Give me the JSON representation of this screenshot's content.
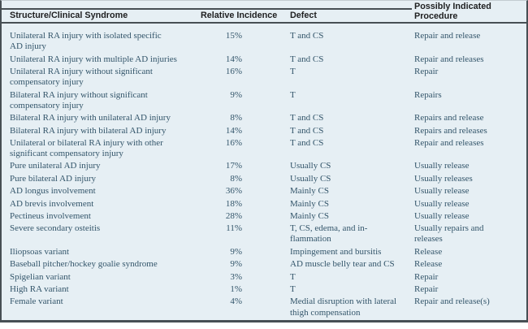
{
  "colors": {
    "table_background": "#e6eff4",
    "frame_rule": "#474f54",
    "header_text": "#1e1f20",
    "body_text": "#33556a",
    "page_background": "#ffffff"
  },
  "table": {
    "columns": [
      {
        "id": "syndrome",
        "label": "Structure/Clinical Syndrome"
      },
      {
        "id": "incidence",
        "label": "Relative Incidence"
      },
      {
        "id": "defect",
        "label": "Defect"
      },
      {
        "id": "procedure",
        "label": "Possibly Indicated\nProcedure"
      }
    ],
    "rows": [
      {
        "syndrome": "Unilateral RA injury with isolated specific\nAD injury",
        "incidence": "15%",
        "defect": "T and CS",
        "procedure": "Repair and release"
      },
      {
        "syndrome": "Unilateral RA injury with multiple AD injuries",
        "incidence": "14%",
        "defect": "T and CS",
        "procedure": "Repair and releases"
      },
      {
        "syndrome": "Unilateral RA injury without significant\ncompensatory injury",
        "incidence": "16%",
        "defect": "T",
        "procedure": "Repair"
      },
      {
        "syndrome": "Bilateral RA injury without significant\ncompensatory injury",
        "incidence": "9%",
        "defect": "T",
        "procedure": "Repairs"
      },
      {
        "syndrome": "Bilateral RA injury with unilateral AD injury",
        "incidence": "8%",
        "defect": "T and CS",
        "procedure": "Repairs and release"
      },
      {
        "syndrome": "Bilateral RA injury with bilateral AD injury",
        "incidence": "14%",
        "defect": "T and CS",
        "procedure": "Repairs and releases"
      },
      {
        "syndrome": "Unilateral or bilateral RA injury with other\nsignificant compensatory injury",
        "incidence": "16%",
        "defect": "T and CS",
        "procedure": "Repair and releases"
      },
      {
        "syndrome": "Pure unilateral AD injury",
        "incidence": "17%",
        "defect": "Usually CS",
        "procedure": "Usually release"
      },
      {
        "syndrome": "Pure bilateral AD injury",
        "incidence": "8%",
        "defect": "Usually CS",
        "procedure": "Usually releases"
      },
      {
        "syndrome": "AD longus involvement",
        "incidence": "36%",
        "defect": "Mainly CS",
        "procedure": "Usually release"
      },
      {
        "syndrome": "AD brevis involvement",
        "incidence": "18%",
        "defect": "Mainly CS",
        "procedure": "Usually release"
      },
      {
        "syndrome": "Pectineus involvement",
        "incidence": "28%",
        "defect": "Mainly CS",
        "procedure": "Usually release"
      },
      {
        "syndrome": "Severe secondary osteitis",
        "incidence": "11%",
        "defect": "T, CS, edema, and in-\nflammation",
        "procedure": "Usually repairs and\nreleases"
      },
      {
        "syndrome": "Iliopsoas variant",
        "incidence": "9%",
        "defect": "Impingement and bursitis",
        "procedure": "Release"
      },
      {
        "syndrome": "Baseball pitcher/hockey goalie syndrome",
        "incidence": "9%",
        "defect": "AD muscle belly tear and CS",
        "procedure": "Release"
      },
      {
        "syndrome": "Spigelian variant",
        "incidence": "3%",
        "defect": "T",
        "procedure": "Repair"
      },
      {
        "syndrome": "High RA variant",
        "incidence": "1%",
        "defect": "T",
        "procedure": "Repair"
      },
      {
        "syndrome": "Female variant",
        "incidence": "4%",
        "defect": "Medial disruption with lateral\nthigh compensation",
        "procedure": "Repair and release(s)"
      }
    ]
  }
}
